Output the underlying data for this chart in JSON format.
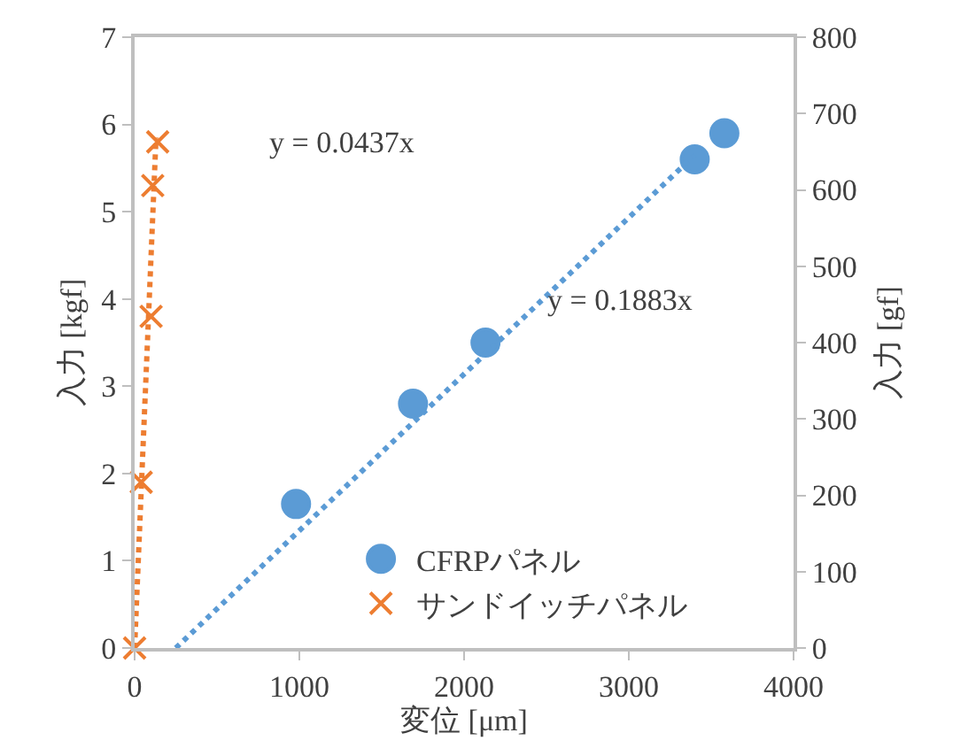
{
  "chart_data": {
    "type": "scatter",
    "xlabel": "変位 [μm]",
    "ylabel": "入力 [kgf]",
    "y2label": "入力 [gf]",
    "xlim": [
      0,
      4000
    ],
    "xticks": [
      0,
      1000,
      2000,
      3000,
      4000
    ],
    "ylim": [
      0,
      7
    ],
    "yticks": [
      0,
      1,
      2,
      3,
      4,
      5,
      6,
      7
    ],
    "y2lim": [
      0,
      800
    ],
    "y2ticks": [
      0,
      100,
      200,
      300,
      400,
      500,
      600,
      700,
      800
    ],
    "grid": false,
    "legend": "bottom right",
    "series": [
      {
        "name": "CFRPパネル",
        "marker": "circle",
        "color": "#5b9bd5",
        "x": [
          980,
          1690,
          2130,
          3400,
          3580
        ],
        "values": [
          1.65,
          2.8,
          3.5,
          5.6,
          5.9
        ]
      },
      {
        "name": "サンドイッチパネル",
        "marker": "cross",
        "color": "#ed7d31",
        "x": [
          0,
          40,
          100,
          110,
          140
        ],
        "values": [
          0,
          1.9,
          3.8,
          5.3,
          5.8
        ]
      },
      {
        "type": "line",
        "marker": "none",
        "line_style": "dotted",
        "color": "#5b9bd5",
        "x": [
          250,
          3400
        ],
        "values": [
          0,
          5.65
        ]
      },
      {
        "type": "line",
        "marker": "none",
        "line_style": "dotted",
        "color": "#ed7d31",
        "x": [
          0,
          130
        ],
        "values": [
          0,
          5.85
        ]
      }
    ],
    "annotations": [
      "y = 0.0437x",
      "y = 0.1883x"
    ]
  }
}
